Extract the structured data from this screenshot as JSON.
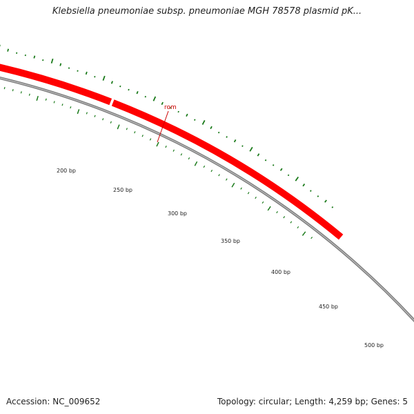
{
  "title": "Klebsiella pneumoniae subsp. pneumoniae MGH 78578 plasmid pK...",
  "accession": "Accession: NC_009652",
  "summary": "Topology: circular; Length: 4,259 bp; Genes: 5",
  "genes": [
    {
      "name": "rom",
      "color": "#ff0000"
    }
  ],
  "ruler_labels": [
    "200 bp",
    "250 bp",
    "300 bp",
    "350 bp",
    "400 bp",
    "450 bp",
    "500 bp"
  ],
  "colors": {
    "gene": "#ff0000",
    "gene_label": "#cc0000",
    "backbone": "#808080",
    "gc_marks": "#1a7a1a"
  }
}
